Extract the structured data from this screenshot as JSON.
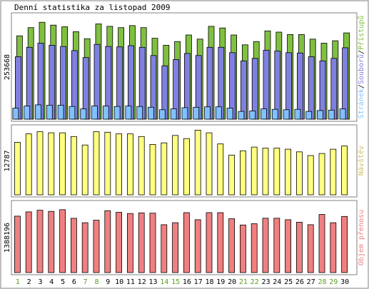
{
  "chart_data": [
    {
      "type": "bar",
      "title": "Denní statistika za listopad 2009",
      "y_max_label": "253668",
      "legend": [
        "Stránek",
        "Souborů",
        "Přístupů"
      ],
      "legend_separator": "/",
      "categories": [
        "1",
        "2",
        "3",
        "4",
        "5",
        "6",
        "7",
        "8",
        "9",
        "10",
        "11",
        "12",
        "13",
        "14",
        "15",
        "16",
        "17",
        "18",
        "19",
        "20",
        "21",
        "22",
        "23",
        "24",
        "25",
        "26",
        "27",
        "28",
        "29",
        "30"
      ],
      "weekend_days": [
        "1",
        "7",
        "8",
        "14",
        "15",
        "21",
        "22",
        "28",
        "29"
      ],
      "ylim": [
        0,
        253668
      ],
      "series": [
        {
          "name": "Přístupů",
          "color": "#80c040",
          "values": [
            203000,
            223000,
            236000,
            229000,
            225000,
            213000,
            196000,
            232000,
            226000,
            223000,
            228000,
            223000,
            197000,
            180000,
            189000,
            205000,
            195000,
            226000,
            222000,
            205000,
            181000,
            189000,
            215000,
            212000,
            206000,
            206000,
            195000,
            185000,
            191000,
            210000
          ]
        },
        {
          "name": "Souborů",
          "color": "#8080e0",
          "values": [
            152000,
            175000,
            185000,
            180000,
            177000,
            167000,
            150000,
            182000,
            177000,
            176000,
            179000,
            175000,
            155000,
            130000,
            145000,
            160000,
            155000,
            175000,
            175000,
            162000,
            142000,
            148000,
            168000,
            166000,
            162000,
            161000,
            152000,
            142000,
            148000,
            174000
          ]
        },
        {
          "name": "Stránek",
          "color": "#80c0ff",
          "values": [
            27000,
            32000,
            35000,
            34000,
            34000,
            31000,
            25000,
            32000,
            32000,
            31000,
            32000,
            31000,
            29000,
            23000,
            25000,
            28000,
            29000,
            30000,
            30000,
            27000,
            19000,
            20000,
            25000,
            24000,
            23000,
            24000,
            19000,
            21000,
            22000,
            25000
          ]
        }
      ]
    },
    {
      "type": "bar",
      "y_max_label": "12787",
      "legend": [
        "Návštěv"
      ],
      "ylim": [
        0,
        12787
      ],
      "series": [
        {
          "name": "Návštěv",
          "color": "#ffff80",
          "values": [
            9900,
            11500,
            11900,
            11700,
            11700,
            11000,
            9400,
            11900,
            11800,
            11500,
            11500,
            11000,
            9500,
            9800,
            11200,
            10600,
            12200,
            11700,
            9600,
            7500,
            8300,
            9000,
            8800,
            8800,
            8600,
            8100,
            7400,
            7800,
            8600,
            9200
          ]
        }
      ]
    },
    {
      "type": "bar",
      "y_max_label": "1388196",
      "legend": [
        "Objem přenosu"
      ],
      "ylim": [
        0,
        1388196
      ],
      "series": [
        {
          "name": "Objem přenosu",
          "color": "#f08080",
          "values": [
            1120000,
            1205000,
            1238000,
            1215000,
            1250000,
            1078000,
            990000,
            1040000,
            1230000,
            1197000,
            1173000,
            1185000,
            1180000,
            950000,
            990000,
            1190000,
            1050000,
            1190000,
            1190000,
            1070000,
            945000,
            970000,
            1080000,
            1080000,
            1050000,
            1000000,
            950000,
            1155000,
            990000,
            1115000
          ]
        }
      ]
    }
  ],
  "colors": {
    "frame": "#808080",
    "bar_border": "#000000",
    "weekday_label": "#000000",
    "weekend_label": "#60a020"
  }
}
